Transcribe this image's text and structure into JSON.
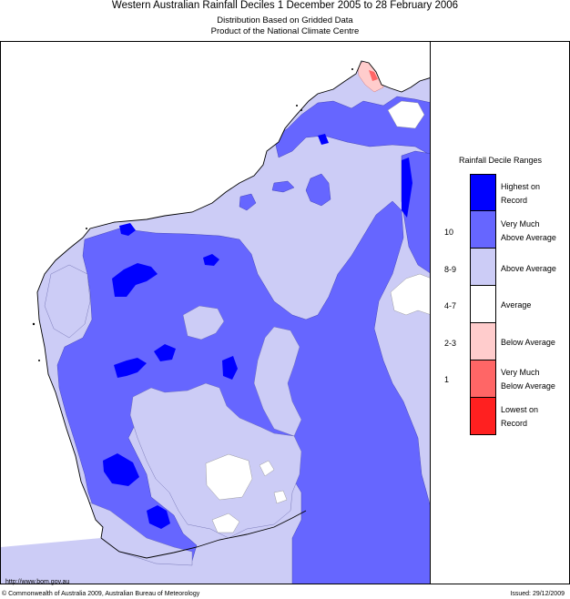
{
  "header": {
    "title": "Western Australian Rainfall Deciles      1 December 2005 to 28 February 2006",
    "subtitle_1": "Distribution Based on Gridded Data",
    "subtitle_2": "Product of the National Climate Centre"
  },
  "legend": {
    "title": "Rainfall Decile Ranges",
    "categories": [
      {
        "label_1": "Highest on",
        "label_2": "Record",
        "range": "",
        "color": "#0000ff"
      },
      {
        "label_1": "Very Much",
        "label_2": "Above Average",
        "range": "10",
        "color": "#6666ff"
      },
      {
        "label_1": "Above Average",
        "label_2": "",
        "range": "8-9",
        "color": "#ccccf6"
      },
      {
        "label_1": "Average",
        "label_2": "",
        "range": "4-7",
        "color": "#ffffff"
      },
      {
        "label_1": "Below Average",
        "label_2": "",
        "range": "2-3",
        "color": "#ffcccc"
      },
      {
        "label_1": "Very Much",
        "label_2": "Below Average",
        "range": "1",
        "color": "#ff6666"
      },
      {
        "label_1": "Lowest on",
        "label_2": "Record",
        "range": "",
        "color": "#ff2020"
      }
    ]
  },
  "footer": {
    "url": "http://www.bom.gov.au",
    "copyright": "© Commonwealth of Australia 2009, Australian Bureau of Meteorology",
    "issued": "Issued: 29/12/2009"
  },
  "map": {
    "colors": {
      "above": "#ccccf6",
      "very_much_above": "#6666ff",
      "highest": "#0000ff",
      "average": "#ffffff",
      "below": "#ffcccc",
      "very_much_below": "#ff6666"
    }
  }
}
